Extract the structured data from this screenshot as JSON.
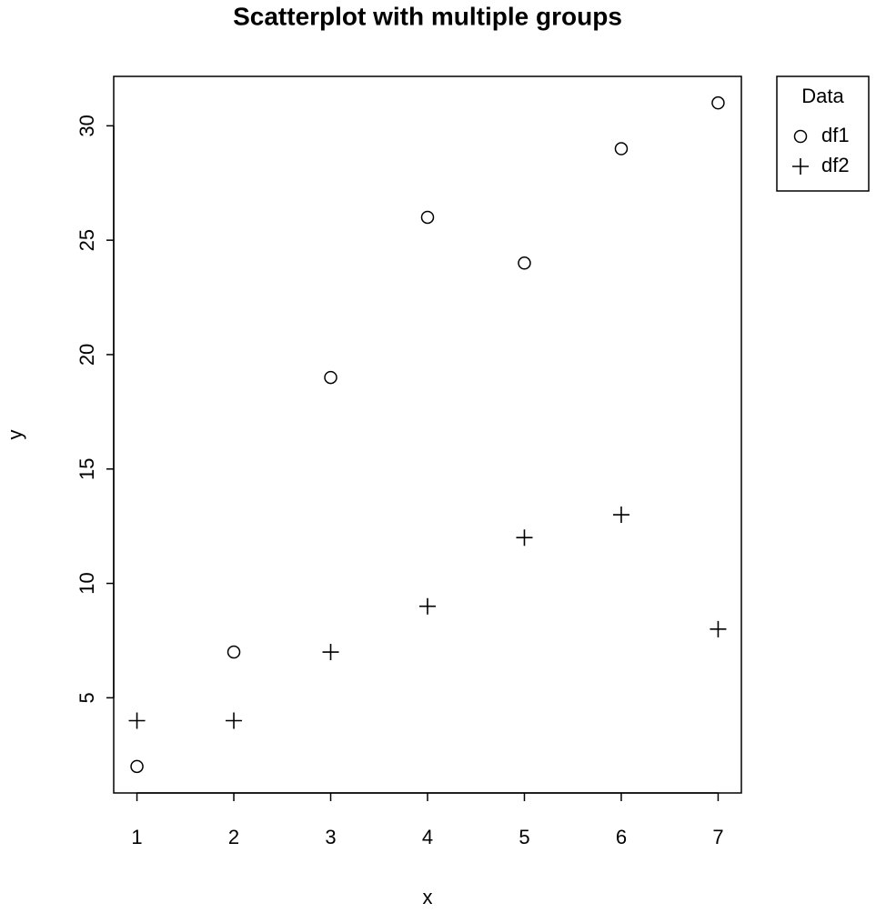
{
  "chart_data": {
    "type": "scatter",
    "title": "Scatterplot with multiple groups",
    "x_label": "x",
    "y_label": "y",
    "xlim": [
      0.76,
      7.24
    ],
    "ylim": [
      0.84,
      32.16
    ],
    "xticks": [
      1,
      2,
      3,
      4,
      5,
      6,
      7
    ],
    "yticks": [
      5,
      10,
      15,
      20,
      25,
      30
    ],
    "grid": false,
    "legend_title": "Data",
    "legend_position": "right",
    "series": [
      {
        "name": "df1",
        "color": "#000000",
        "marker": "circle",
        "x": [
          1,
          2,
          3,
          4,
          5,
          6,
          7
        ],
        "values": [
          2,
          7,
          19,
          26,
          24,
          29,
          31
        ]
      },
      {
        "name": "df2",
        "color": "#000000",
        "marker": "plus",
        "x": [
          1,
          2,
          3,
          4,
          5,
          6,
          7
        ],
        "values": [
          4,
          4,
          7,
          9,
          12,
          13,
          8
        ]
      }
    ]
  }
}
